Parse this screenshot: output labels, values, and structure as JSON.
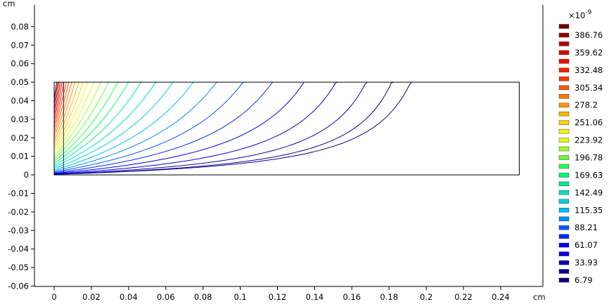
{
  "chart_data": {
    "type": "contour",
    "x_unit": "cm",
    "y_unit": "cm",
    "xlim": [
      -0.0106,
      0.2627
    ],
    "ylim": [
      -0.0602,
      0.0917
    ],
    "xticks": [
      0,
      0.02,
      0.04,
      0.06,
      0.08,
      0.1,
      0.12,
      0.14,
      0.16,
      0.18,
      0.2,
      0.22,
      0.24
    ],
    "yticks": [
      -0.06,
      -0.05,
      -0.04,
      -0.03,
      -0.02,
      -0.01,
      0,
      0.01,
      0.02,
      0.03,
      0.04,
      0.05,
      0.06,
      0.07,
      0.08
    ],
    "legend_multiplier": "×10",
    "legend_exponent": "-9",
    "legend_ticks": [
      6.79,
      33.93,
      61.07,
      88.21,
      115.35,
      142.49,
      169.63,
      196.78,
      223.92,
      251.06,
      278.2,
      305.34,
      332.48,
      359.62,
      386.76
    ],
    "levels": [
      6.79,
      20.36,
      33.93,
      47.5,
      61.07,
      74.64,
      88.21,
      101.78,
      115.35,
      128.92,
      142.49,
      156.07,
      169.63,
      183.21,
      196.78,
      210.35,
      223.92,
      237.49,
      251.06,
      264.63,
      278.2,
      291.77,
      305.34,
      318.91,
      332.48,
      346.05,
      359.62,
      373.19,
      386.76,
      400.33
    ],
    "colormap": [
      "#10007a",
      "#0000ff",
      "#00c8ff",
      "#00ff60",
      "#ffff00",
      "#ff8000",
      "#ff0000",
      "#700000"
    ]
  }
}
